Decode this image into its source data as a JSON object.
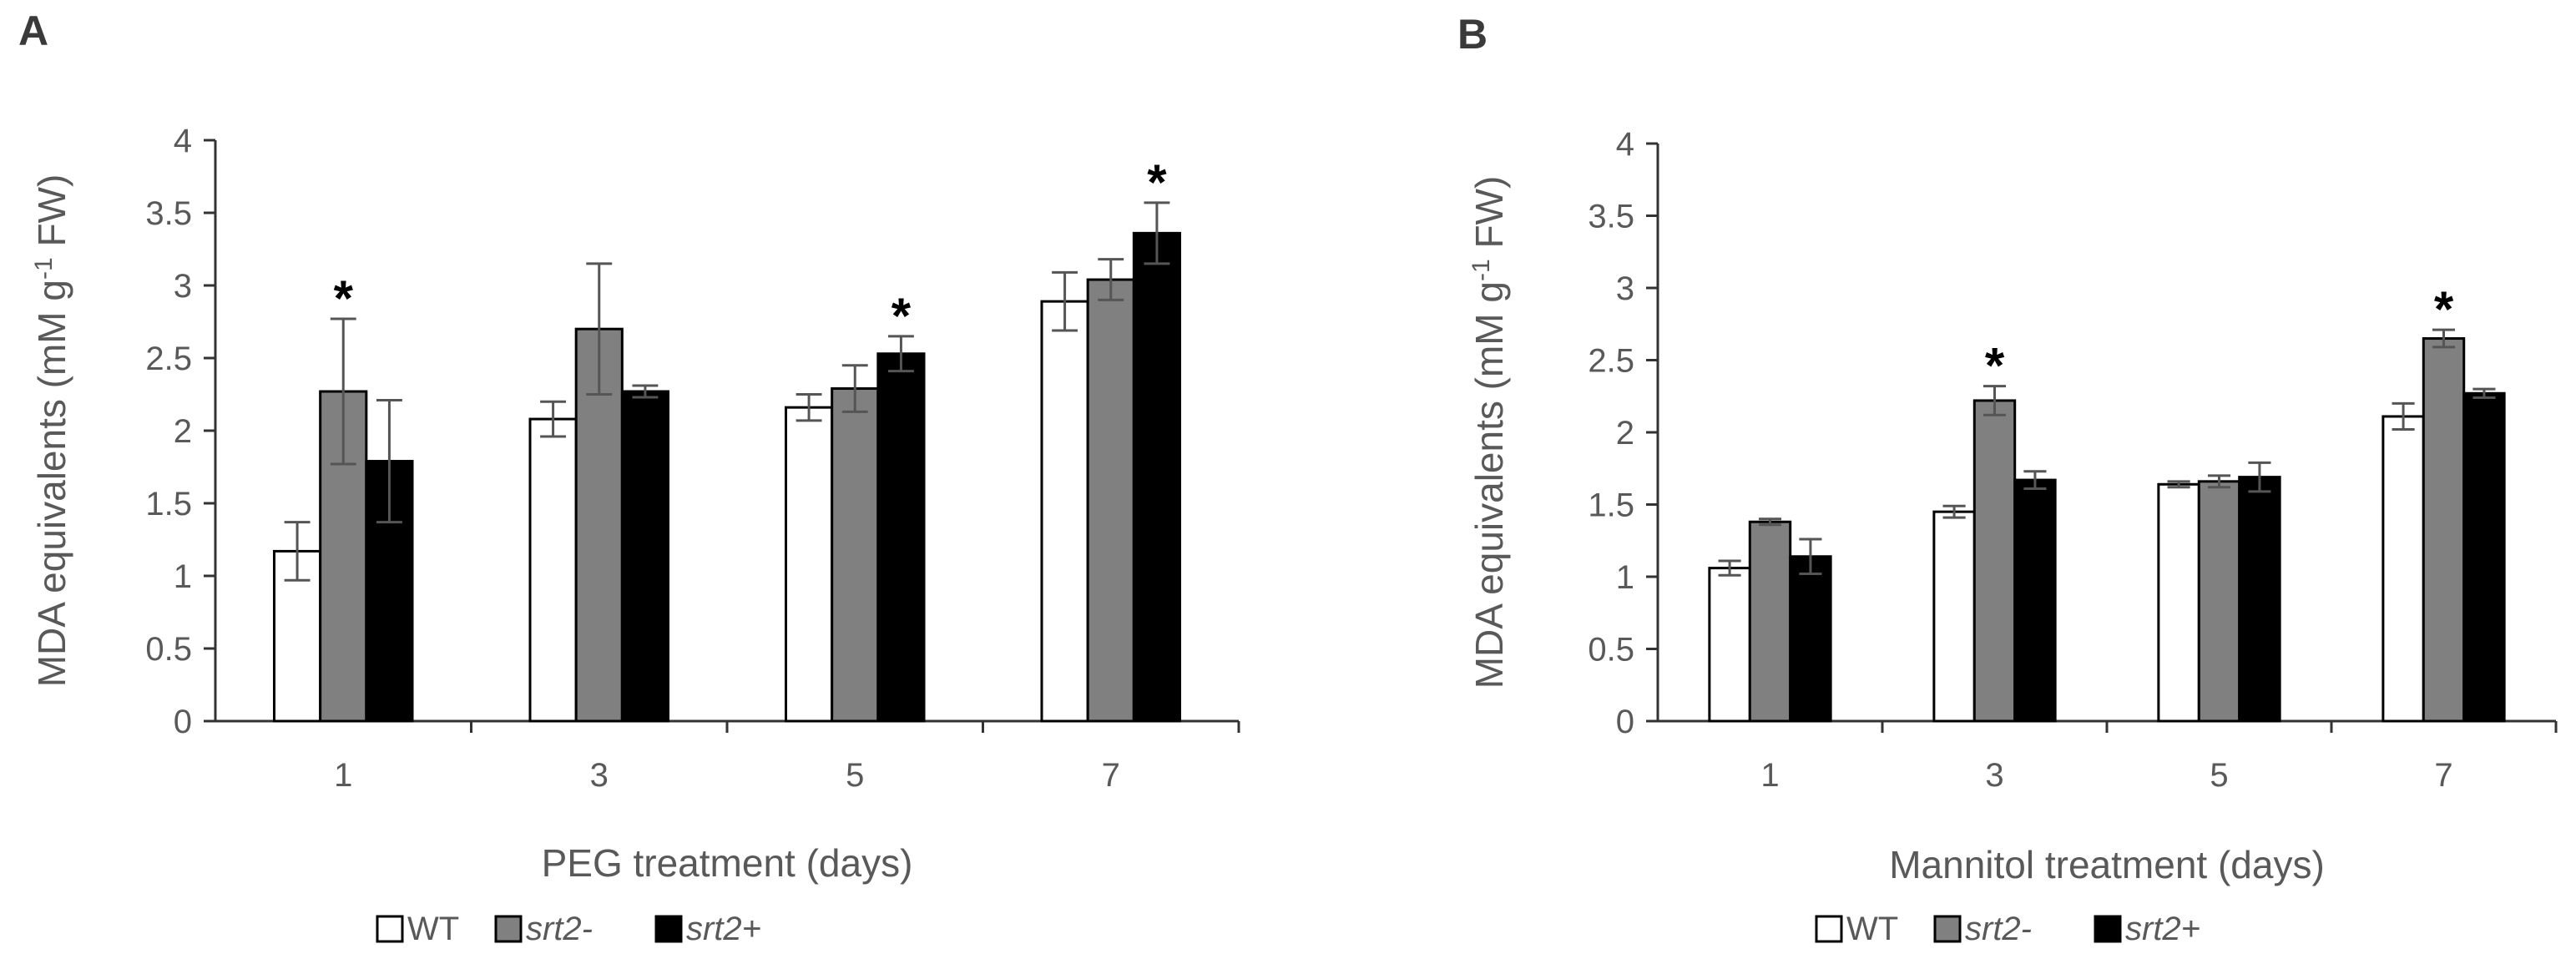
{
  "panels": [
    {
      "label": "A",
      "chart_data": {
        "type": "bar",
        "title": "",
        "xlabel": "PEG treatment (days)",
        "ylabel_main": "MDA equivalents (mM g",
        "ylabel_sup": "-1",
        "ylabel_end": " FW)",
        "ylim": [
          0,
          4
        ],
        "yticks": [
          0,
          0.5,
          1,
          1.5,
          2,
          2.5,
          3,
          3.5,
          4
        ],
        "ytick_labels": [
          "0",
          "0.5",
          "1",
          "1.5",
          "2",
          "2.5",
          "3",
          "3.5",
          "4"
        ],
        "categories": [
          "1",
          "3",
          "5",
          "7"
        ],
        "series": [
          {
            "name": "WT",
            "color": "#ffffff",
            "values": [
              1.17,
              2.08,
              2.16,
              2.89
            ],
            "errors": [
              0.2,
              0.12,
              0.09,
              0.2
            ]
          },
          {
            "name": "srt2-",
            "color": "#808080",
            "values": [
              2.27,
              2.7,
              2.29,
              3.04
            ],
            "errors": [
              0.5,
              0.45,
              0.16,
              0.14
            ]
          },
          {
            "name": "srt2+",
            "color": "#000000",
            "values": [
              1.79,
              2.27,
              2.53,
              3.36
            ],
            "errors": [
              0.42,
              0.04,
              0.12,
              0.21
            ]
          }
        ],
        "significance": [
          {
            "category_index": 0,
            "series_index": 1,
            "text": "*"
          },
          {
            "category_index": 2,
            "series_index": 2,
            "text": "*"
          },
          {
            "category_index": 3,
            "series_index": 2,
            "text": "*"
          }
        ]
      }
    },
    {
      "label": "B",
      "chart_data": {
        "type": "bar",
        "title": "",
        "xlabel": "Mannitol treatment (days)",
        "ylabel_main": "MDA equivalents (mM g",
        "ylabel_sup": "-1",
        "ylabel_end": " FW)",
        "ylim": [
          0,
          4
        ],
        "yticks": [
          0,
          0.5,
          1,
          1.5,
          2,
          2.5,
          3,
          3.5,
          4
        ],
        "ytick_labels": [
          "0",
          "0.5",
          "1",
          "1.5",
          "2",
          "2.5",
          "3",
          "3.5",
          "4"
        ],
        "categories": [
          "1",
          "3",
          "5",
          "7"
        ],
        "series": [
          {
            "name": "WT",
            "color": "#ffffff",
            "values": [
              1.06,
              1.45,
              1.64,
              2.11
            ],
            "errors": [
              0.05,
              0.04,
              0.02,
              0.09
            ]
          },
          {
            "name": "srt2-",
            "color": "#808080",
            "values": [
              1.38,
              2.22,
              1.66,
              2.65
            ],
            "errors": [
              0.02,
              0.1,
              0.04,
              0.06
            ]
          },
          {
            "name": "srt2+",
            "color": "#000000",
            "values": [
              1.14,
              1.67,
              1.69,
              2.27
            ],
            "errors": [
              0.12,
              0.06,
              0.1,
              0.03
            ]
          }
        ],
        "significance": [
          {
            "category_index": 1,
            "series_index": 1,
            "text": "*"
          },
          {
            "category_index": 3,
            "series_index": 1,
            "text": "*"
          }
        ]
      }
    }
  ]
}
